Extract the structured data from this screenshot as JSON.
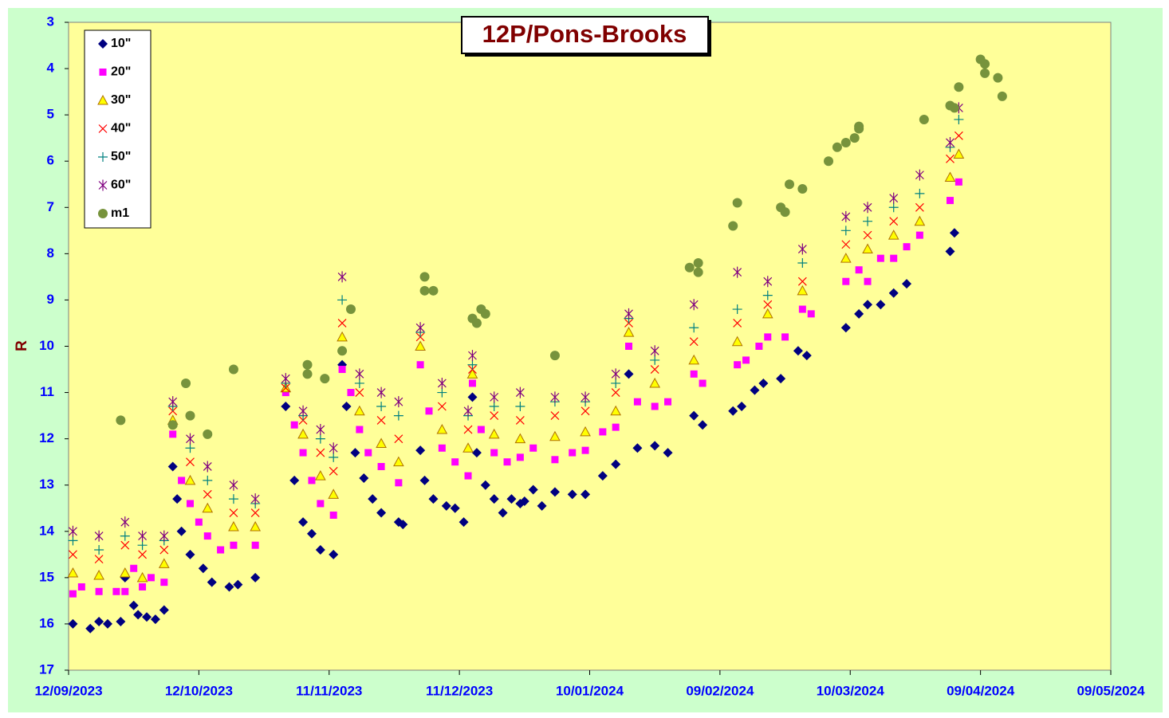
{
  "chart_data": {
    "type": "scatter",
    "title": "12P/Pons-Brooks",
    "y_label": "R",
    "ylim": [
      17,
      3
    ],
    "yticks": [
      3,
      4,
      5,
      6,
      7,
      8,
      9,
      10,
      11,
      12,
      13,
      14,
      15,
      16,
      17
    ],
    "xlim": [
      "2023-09-12",
      "2024-05-09"
    ],
    "xticks": [
      {
        "value": "2023-09-12",
        "label": "12/09/2023"
      },
      {
        "value": "2023-10-12",
        "label": "12/10/2023"
      },
      {
        "value": "2023-11-11",
        "label": "11/11/2023"
      },
      {
        "value": "2023-12-11",
        "label": "11/12/2023"
      },
      {
        "value": "2024-01-10",
        "label": "10/01/2024"
      },
      {
        "value": "2024-02-09",
        "label": "09/02/2024"
      },
      {
        "value": "2024-03-10",
        "label": "10/03/2024"
      },
      {
        "value": "2024-04-09",
        "label": "09/04/2024"
      },
      {
        "value": "2024-05-09",
        "label": "09/05/2024"
      }
    ],
    "legend": "top-left",
    "series": [
      {
        "name": "10\"",
        "color": "#000080",
        "marker": "diamond",
        "x": [
          "2023-09-13",
          "2023-09-17",
          "2023-09-19",
          "2023-09-21",
          "2023-09-24",
          "2023-09-25",
          "2023-09-27",
          "2023-09-28",
          "2023-09-30",
          "2023-10-02",
          "2023-10-04",
          "2023-10-06",
          "2023-10-07",
          "2023-10-08",
          "2023-10-10",
          "2023-10-13",
          "2023-10-15",
          "2023-10-19",
          "2023-10-21",
          "2023-10-25",
          "2023-11-01",
          "2023-11-03",
          "2023-11-05",
          "2023-11-07",
          "2023-11-09",
          "2023-11-12",
          "2023-11-14",
          "2023-11-15",
          "2023-11-17",
          "2023-11-19",
          "2023-11-21",
          "2023-11-23",
          "2023-11-27",
          "2023-11-28",
          "2023-12-02",
          "2023-12-03",
          "2023-12-05",
          "2023-12-08",
          "2023-12-10",
          "2023-12-12",
          "2023-12-14",
          "2023-12-15",
          "2023-12-17",
          "2023-12-19",
          "2023-12-21",
          "2023-12-23",
          "2023-12-25",
          "2023-12-26",
          "2023-12-28",
          "2023-12-30",
          "2024-01-02",
          "2024-01-06",
          "2024-01-09",
          "2024-01-13",
          "2024-01-16",
          "2024-01-19",
          "2024-01-21",
          "2024-01-25",
          "2024-01-28",
          "2024-02-03",
          "2024-02-05",
          "2024-02-12",
          "2024-02-14",
          "2024-02-17",
          "2024-02-19",
          "2024-02-23",
          "2024-02-27",
          "2024-02-29",
          "2024-03-09",
          "2024-03-12",
          "2024-03-14",
          "2024-03-17",
          "2024-03-20",
          "2024-03-23",
          "2024-04-02",
          "2024-04-03"
        ],
        "values": [
          16.0,
          16.1,
          15.95,
          16.0,
          15.95,
          15.0,
          15.6,
          15.8,
          15.85,
          15.9,
          15.7,
          12.6,
          13.3,
          14.0,
          14.5,
          14.8,
          15.1,
          15.2,
          15.15,
          15.0,
          11.3,
          12.9,
          13.8,
          14.05,
          14.4,
          14.5,
          10.4,
          11.3,
          12.3,
          12.85,
          13.3,
          13.6,
          13.8,
          13.85,
          12.25,
          12.9,
          13.3,
          13.45,
          13.5,
          13.8,
          11.1,
          12.3,
          13.0,
          13.3,
          13.6,
          13.3,
          13.4,
          13.35,
          13.1,
          13.45,
          13.15,
          13.2,
          13.2,
          12.8,
          12.55,
          10.6,
          12.2,
          12.15,
          12.3,
          11.5,
          11.7,
          11.4,
          11.3,
          10.95,
          10.8,
          10.7,
          10.1,
          10.2,
          9.6,
          9.3,
          9.1,
          9.1,
          8.85,
          8.65,
          7.95,
          7.55
        ]
      },
      {
        "name": "20\"",
        "color": "#ff00ff",
        "marker": "square",
        "x": [
          "2023-09-13",
          "2023-09-15",
          "2023-09-19",
          "2023-09-23",
          "2023-09-25",
          "2023-09-27",
          "2023-09-29",
          "2023-10-01",
          "2023-10-04",
          "2023-10-06",
          "2023-10-08",
          "2023-10-10",
          "2023-10-12",
          "2023-10-14",
          "2023-10-17",
          "2023-10-20",
          "2023-10-25",
          "2023-11-01",
          "2023-11-03",
          "2023-11-05",
          "2023-11-07",
          "2023-11-09",
          "2023-11-12",
          "2023-11-14",
          "2023-11-16",
          "2023-11-18",
          "2023-11-20",
          "2023-11-23",
          "2023-11-27",
          "2023-12-02",
          "2023-12-04",
          "2023-12-07",
          "2023-12-10",
          "2023-12-13",
          "2023-12-14",
          "2023-12-16",
          "2023-12-19",
          "2023-12-22",
          "2023-12-25",
          "2023-12-28",
          "2024-01-02",
          "2024-01-06",
          "2024-01-09",
          "2024-01-13",
          "2024-01-16",
          "2024-01-19",
          "2024-01-21",
          "2024-01-25",
          "2024-01-28",
          "2024-02-03",
          "2024-02-05",
          "2024-02-13",
          "2024-02-15",
          "2024-02-18",
          "2024-02-20",
          "2024-02-24",
          "2024-02-28",
          "2024-03-01",
          "2024-03-09",
          "2024-03-12",
          "2024-03-14",
          "2024-03-17",
          "2024-03-20",
          "2024-03-23",
          "2024-03-26",
          "2024-04-02",
          "2024-04-04"
        ],
        "values": [
          15.35,
          15.2,
          15.3,
          15.3,
          15.3,
          14.8,
          15.2,
          15.0,
          15.1,
          11.9,
          12.9,
          13.4,
          13.8,
          14.1,
          14.4,
          14.3,
          14.3,
          11.0,
          11.7,
          12.3,
          12.9,
          13.4,
          13.65,
          10.5,
          11.0,
          11.8,
          12.3,
          12.6,
          12.95,
          10.4,
          11.4,
          12.2,
          12.5,
          12.8,
          10.8,
          11.8,
          12.3,
          12.5,
          12.4,
          12.2,
          12.45,
          12.3,
          12.25,
          11.85,
          11.75,
          10.0,
          11.2,
          11.3,
          11.2,
          10.6,
          10.8,
          10.4,
          10.3,
          10.0,
          9.8,
          9.8,
          9.2,
          9.3,
          8.6,
          8.35,
          8.6,
          8.1,
          8.1,
          7.85,
          7.6,
          6.85,
          6.45
        ]
      },
      {
        "name": "30\"",
        "color": "#ffff00",
        "marker": "triangle",
        "x": [
          "2023-09-13",
          "2023-09-19",
          "2023-09-25",
          "2023-09-29",
          "2023-10-04",
          "2023-10-06",
          "2023-10-10",
          "2023-10-14",
          "2023-10-20",
          "2023-10-25",
          "2023-11-01",
          "2023-11-05",
          "2023-11-09",
          "2023-11-12",
          "2023-11-14",
          "2023-11-18",
          "2023-11-23",
          "2023-11-27",
          "2023-12-02",
          "2023-12-07",
          "2023-12-13",
          "2023-12-14",
          "2023-12-19",
          "2023-12-25",
          "2024-01-02",
          "2024-01-09",
          "2024-01-16",
          "2024-01-19",
          "2024-01-25",
          "2024-02-03",
          "2024-02-13",
          "2024-02-20",
          "2024-02-28",
          "2024-03-09",
          "2024-03-14",
          "2024-03-20",
          "2024-03-26",
          "2024-04-02",
          "2024-04-04"
        ],
        "values": [
          14.9,
          14.95,
          14.9,
          15.0,
          14.7,
          11.6,
          12.9,
          13.5,
          13.9,
          13.9,
          10.9,
          11.9,
          12.8,
          13.2,
          9.8,
          11.4,
          12.1,
          12.5,
          10.0,
          11.8,
          12.2,
          10.6,
          11.9,
          12.0,
          11.95,
          11.85,
          11.4,
          9.7,
          10.8,
          10.3,
          9.9,
          9.3,
          8.8,
          8.1,
          7.9,
          7.6,
          7.3,
          6.35,
          5.85
        ]
      },
      {
        "name": "40\"",
        "color": "#ff0000",
        "marker": "x",
        "x": [
          "2023-09-13",
          "2023-09-19",
          "2023-09-25",
          "2023-09-29",
          "2023-10-04",
          "2023-10-06",
          "2023-10-10",
          "2023-10-14",
          "2023-10-20",
          "2023-10-25",
          "2023-11-01",
          "2023-11-05",
          "2023-11-09",
          "2023-11-12",
          "2023-11-14",
          "2023-11-18",
          "2023-11-23",
          "2023-11-27",
          "2023-12-02",
          "2023-12-07",
          "2023-12-13",
          "2023-12-14",
          "2023-12-19",
          "2023-12-25",
          "2024-01-02",
          "2024-01-09",
          "2024-01-16",
          "2024-01-19",
          "2024-01-25",
          "2024-02-03",
          "2024-02-13",
          "2024-02-20",
          "2024-02-28",
          "2024-03-09",
          "2024-03-14",
          "2024-03-20",
          "2024-03-26",
          "2024-04-02",
          "2024-04-04"
        ],
        "values": [
          14.5,
          14.6,
          14.3,
          14.5,
          14.4,
          11.4,
          12.5,
          13.2,
          13.6,
          13.6,
          10.9,
          11.6,
          12.3,
          12.7,
          9.5,
          11.0,
          11.6,
          12.0,
          9.8,
          11.3,
          11.8,
          10.5,
          11.5,
          11.6,
          11.5,
          11.4,
          11.0,
          9.5,
          10.5,
          9.9,
          9.5,
          9.1,
          8.6,
          7.8,
          7.6,
          7.3,
          7.0,
          5.95,
          5.45
        ]
      },
      {
        "name": "50\"",
        "color": "#008080",
        "marker": "plus",
        "x": [
          "2023-09-13",
          "2023-09-19",
          "2023-09-25",
          "2023-09-29",
          "2023-10-04",
          "2023-10-06",
          "2023-10-10",
          "2023-10-14",
          "2023-10-20",
          "2023-10-25",
          "2023-11-01",
          "2023-11-05",
          "2023-11-09",
          "2023-11-12",
          "2023-11-14",
          "2023-11-18",
          "2023-11-23",
          "2023-11-27",
          "2023-12-02",
          "2023-12-07",
          "2023-12-13",
          "2023-12-14",
          "2023-12-19",
          "2023-12-25",
          "2024-01-02",
          "2024-01-09",
          "2024-01-16",
          "2024-01-19",
          "2024-01-25",
          "2024-02-03",
          "2024-02-13",
          "2024-02-20",
          "2024-02-28",
          "2024-03-09",
          "2024-03-14",
          "2024-03-20",
          "2024-03-26",
          "2024-04-02",
          "2024-04-04"
        ],
        "values": [
          14.2,
          14.4,
          14.1,
          14.3,
          14.2,
          11.3,
          12.2,
          12.9,
          13.3,
          13.4,
          10.8,
          11.5,
          12.0,
          12.4,
          9.0,
          10.8,
          11.3,
          11.5,
          9.7,
          11.0,
          11.5,
          10.4,
          11.3,
          11.3,
          11.2,
          11.2,
          10.8,
          9.4,
          10.3,
          9.6,
          9.2,
          8.9,
          8.2,
          7.5,
          7.3,
          7.0,
          6.7,
          5.7,
          5.1
        ]
      },
      {
        "name": "60\"",
        "color": "#800080",
        "marker": "star",
        "x": [
          "2023-09-13",
          "2023-09-19",
          "2023-09-25",
          "2023-09-29",
          "2023-10-04",
          "2023-10-06",
          "2023-10-10",
          "2023-10-14",
          "2023-10-20",
          "2023-10-25",
          "2023-11-01",
          "2023-11-05",
          "2023-11-09",
          "2023-11-12",
          "2023-11-14",
          "2023-11-18",
          "2023-11-23",
          "2023-11-27",
          "2023-12-02",
          "2023-12-07",
          "2023-12-13",
          "2023-12-14",
          "2023-12-19",
          "2023-12-25",
          "2024-01-02",
          "2024-01-09",
          "2024-01-16",
          "2024-01-19",
          "2024-01-25",
          "2024-02-03",
          "2024-02-13",
          "2024-02-20",
          "2024-02-28",
          "2024-03-09",
          "2024-03-14",
          "2024-03-20",
          "2024-03-26",
          "2024-04-02",
          "2024-04-04"
        ],
        "values": [
          14.0,
          14.1,
          13.8,
          14.1,
          14.1,
          11.2,
          12.0,
          12.6,
          13.0,
          13.3,
          10.7,
          11.4,
          11.8,
          12.2,
          8.5,
          10.6,
          11.0,
          11.2,
          9.6,
          10.8,
          11.4,
          10.2,
          11.1,
          11.0,
          11.1,
          11.1,
          10.6,
          9.3,
          10.1,
          9.1,
          8.4,
          8.6,
          7.9,
          7.2,
          7.0,
          6.8,
          6.3,
          5.6,
          4.85
        ]
      },
      {
        "name": "m1",
        "color": "#77933c",
        "marker": "circle",
        "x": [
          "2023-09-24",
          "2023-10-06",
          "2023-10-09",
          "2023-10-10",
          "2023-10-14",
          "2023-10-20",
          "2023-11-06",
          "2023-11-06",
          "2023-11-10",
          "2023-11-14",
          "2023-11-16",
          "2023-12-03",
          "2023-12-03",
          "2023-12-05",
          "2023-12-14",
          "2023-12-15",
          "2023-12-16",
          "2023-12-17",
          "2024-01-02",
          "2024-02-02",
          "2024-02-04",
          "2024-02-04",
          "2024-02-12",
          "2024-02-13",
          "2024-02-23",
          "2024-02-24",
          "2024-02-25",
          "2024-02-28",
          "2024-03-05",
          "2024-03-07",
          "2024-03-09",
          "2024-03-11",
          "2024-03-12",
          "2024-03-12",
          "2024-03-27",
          "2024-04-02",
          "2024-04-03",
          "2024-04-04",
          "2024-04-09",
          "2024-04-10",
          "2024-04-10",
          "2024-04-13",
          "2024-04-14"
        ],
        "values": [
          11.6,
          11.7,
          10.8,
          11.5,
          11.9,
          10.5,
          10.4,
          10.6,
          10.7,
          10.1,
          9.2,
          8.5,
          8.8,
          8.8,
          9.4,
          9.5,
          9.2,
          9.3,
          10.2,
          8.3,
          8.2,
          8.4,
          7.4,
          6.9,
          7.0,
          7.1,
          6.5,
          6.6,
          6.0,
          5.7,
          5.6,
          5.5,
          5.3,
          5.25,
          5.1,
          4.8,
          4.85,
          4.4,
          3.8,
          3.9,
          4.1,
          4.2,
          4.6
        ]
      }
    ]
  }
}
